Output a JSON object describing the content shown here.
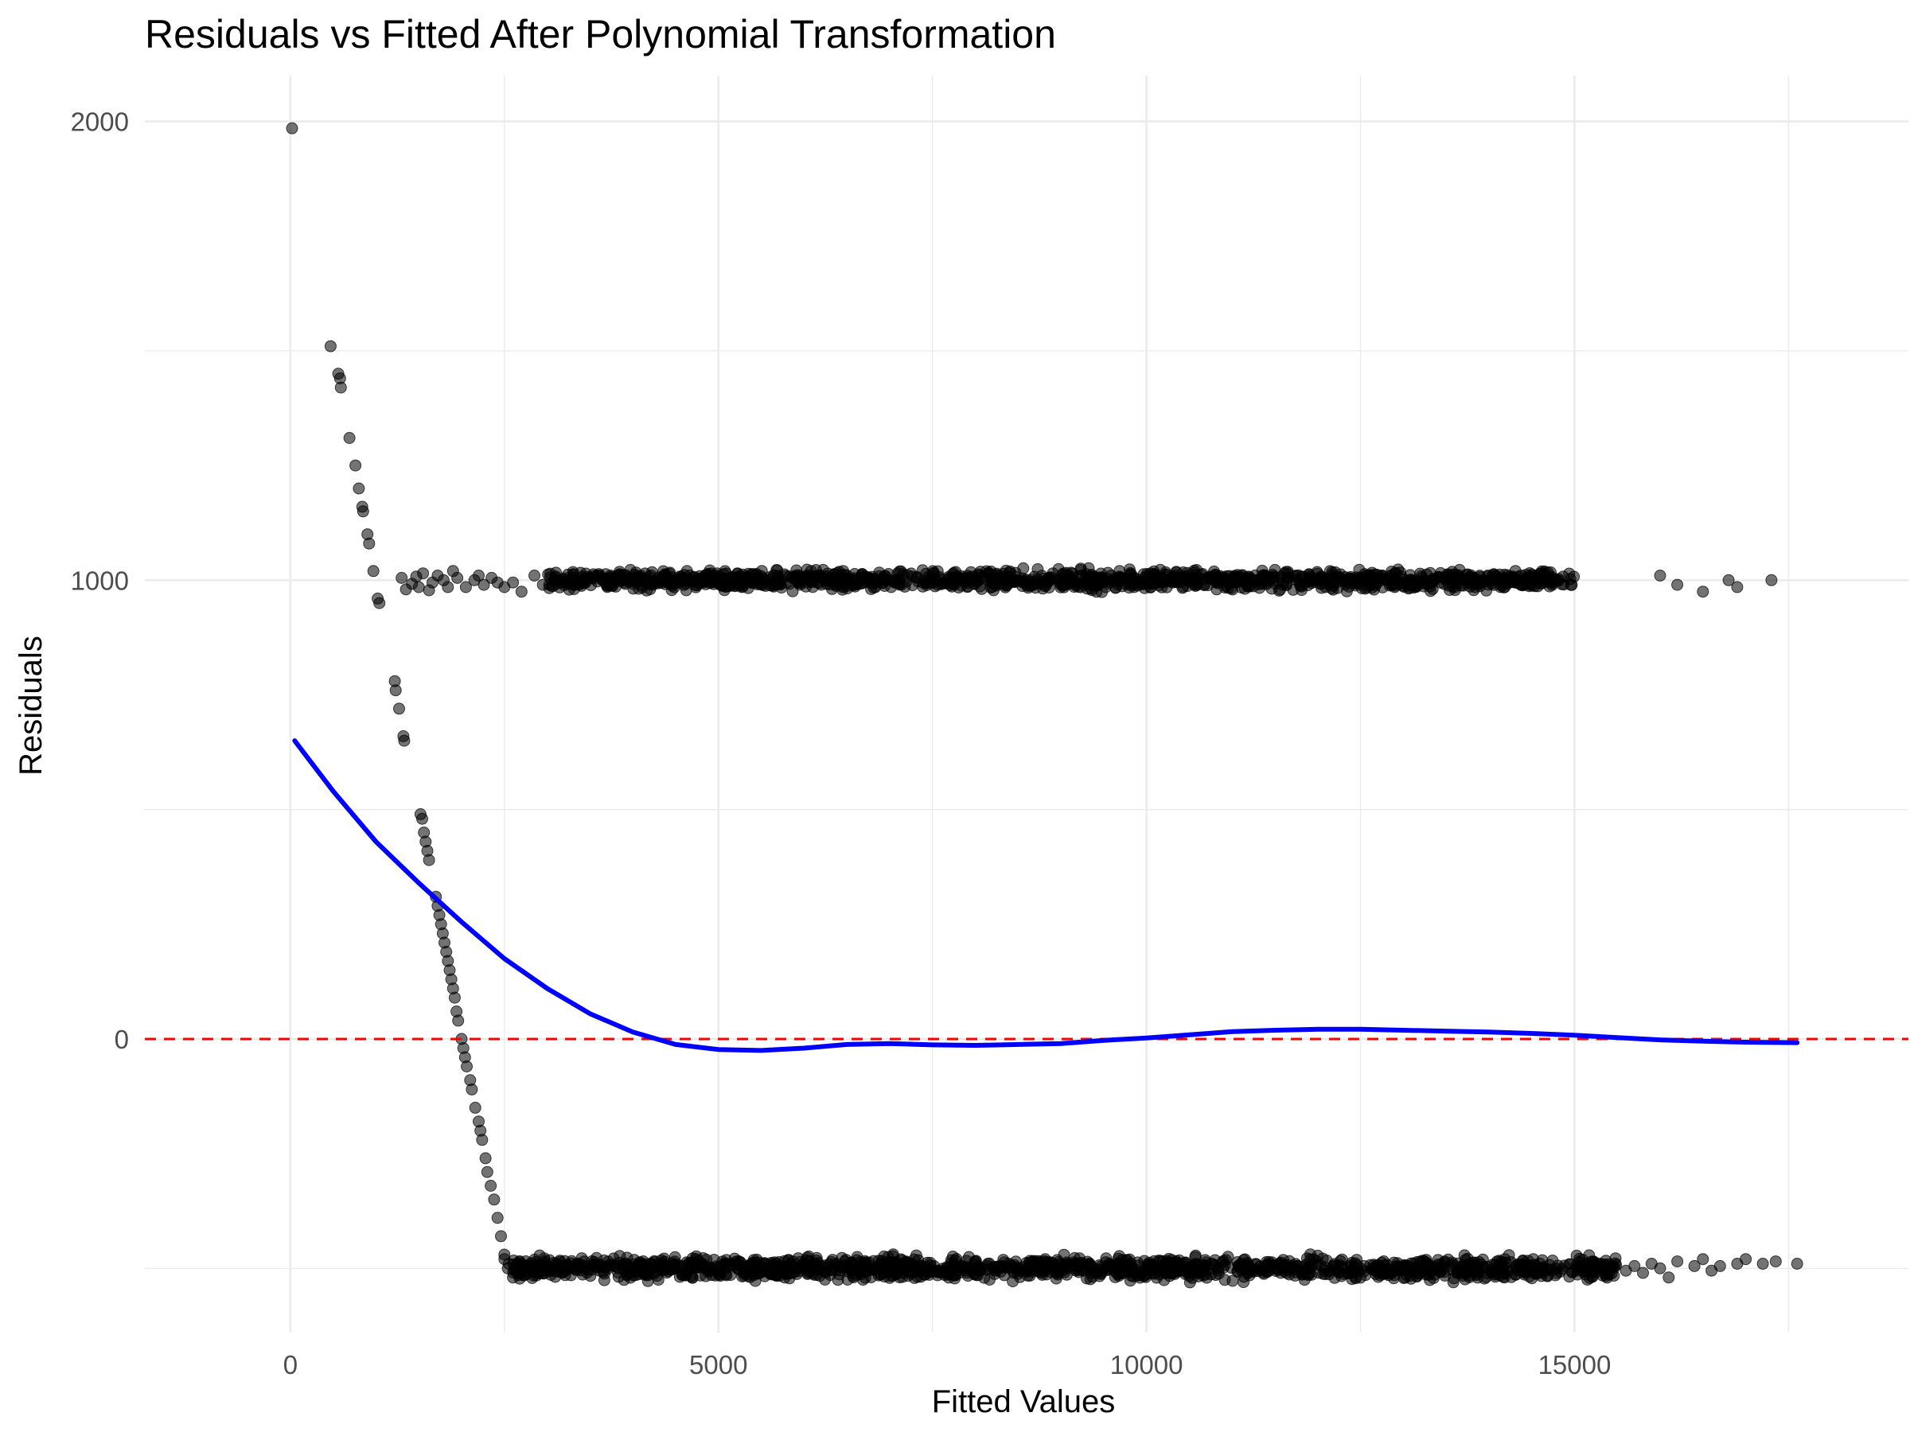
{
  "chart_data": {
    "type": "scatter",
    "title": "Residuals vs Fitted After Polynomial Transformation",
    "xlabel": "Fitted Values",
    "ylabel": "Residuals",
    "xlim": [
      -1700,
      18900
    ],
    "ylim": [
      -640,
      2100
    ],
    "x_ticks": [
      0,
      5000,
      10000,
      15000
    ],
    "x_tick_labels": [
      "0",
      "5000",
      "10000",
      "15000"
    ],
    "y_ticks": [
      0,
      1000,
      2000
    ],
    "y_tick_labels": [
      "0",
      "1000",
      "2000"
    ],
    "grid": true,
    "legend": "none",
    "colors": {
      "points": "#000000",
      "smooth_line": "#0000ff",
      "reference_line": "#ff0000",
      "grid": "#ebebeb"
    },
    "series": [
      {
        "kind": "points",
        "point_groups": [
          {
            "pattern": "steep_descending_band",
            "points": [
              [
                20,
                1985
              ],
              [
                470,
                1510
              ],
              [
                560,
                1450
              ],
              [
                580,
                1440
              ],
              [
                590,
                1420
              ],
              [
                690,
                1310
              ],
              [
                760,
                1250
              ],
              [
                800,
                1200
              ],
              [
                840,
                1160
              ],
              [
                850,
                1150
              ],
              [
                900,
                1100
              ],
              [
                920,
                1080
              ],
              [
                970,
                1020
              ],
              [
                1020,
                960
              ],
              [
                1040,
                950
              ],
              [
                1220,
                780
              ],
              [
                1230,
                760
              ],
              [
                1270,
                720
              ],
              [
                1320,
                660
              ],
              [
                1330,
                650
              ],
              [
                1520,
                490
              ],
              [
                1540,
                480
              ],
              [
                1560,
                450
              ],
              [
                1580,
                430
              ],
              [
                1600,
                410
              ],
              [
                1620,
                390
              ],
              [
                1700,
                310
              ],
              [
                1720,
                290
              ],
              [
                1740,
                270
              ],
              [
                1760,
                250
              ],
              [
                1780,
                230
              ],
              [
                1800,
                210
              ],
              [
                1820,
                190
              ],
              [
                1840,
                170
              ],
              [
                1860,
                150
              ],
              [
                1880,
                130
              ],
              [
                1900,
                110
              ],
              [
                1920,
                90
              ],
              [
                1940,
                60
              ],
              [
                1960,
                40
              ],
              [
                2000,
                0
              ],
              [
                2020,
                -20
              ],
              [
                2040,
                -40
              ],
              [
                2060,
                -60
              ],
              [
                2100,
                -90
              ],
              [
                2120,
                -110
              ],
              [
                2160,
                -150
              ],
              [
                2200,
                -180
              ],
              [
                2220,
                -200
              ],
              [
                2240,
                -220
              ],
              [
                2280,
                -260
              ],
              [
                2300,
                -290
              ],
              [
                2340,
                -320
              ],
              [
                2380,
                -350
              ],
              [
                2420,
                -390
              ],
              [
                2460,
                -430
              ],
              [
                2500,
                -480
              ],
              [
                2540,
                -500
              ]
            ]
          },
          {
            "pattern": "upper_horizontal_band",
            "center": 1000,
            "jitter": 30,
            "x_range": [
              1300,
              17400
            ],
            "dense_x_range": [
              3000,
              15000
            ],
            "points": [
              [
                1300,
                1005
              ],
              [
                1350,
                980
              ],
              [
                1420,
                992
              ],
              [
                1470,
                1008
              ],
              [
                1500,
                985
              ],
              [
                1550,
                1015
              ],
              [
                1620,
                978
              ],
              [
                1660,
                995
              ],
              [
                1720,
                1010
              ],
              [
                1790,
                1000
              ],
              [
                1840,
                985
              ],
              [
                1900,
                1020
              ],
              [
                1950,
                1005
              ],
              [
                2050,
                985
              ],
              [
                2150,
                1000
              ],
              [
                2200,
                1010
              ],
              [
                2260,
                990
              ],
              [
                2350,
                1005
              ],
              [
                2420,
                995
              ],
              [
                2500,
                985
              ],
              [
                2600,
                995
              ],
              [
                2700,
                975
              ],
              [
                2850,
                1010
              ],
              [
                2950,
                990
              ],
              [
                16000,
                1010
              ],
              [
                16200,
                990
              ],
              [
                16500,
                975
              ],
              [
                16800,
                1000
              ],
              [
                16900,
                985
              ],
              [
                17300,
                1000
              ]
            ]
          },
          {
            "pattern": "lower_horizontal_band",
            "center": -500,
            "jitter": 35,
            "x_range": [
              2500,
              17600
            ],
            "dense_x_range": [
              2600,
              15500
            ],
            "points": [
              [
                2500,
                -470
              ],
              [
                2550,
                -490
              ],
              [
                2600,
                -520
              ],
              [
                15600,
                -505
              ],
              [
                15700,
                -495
              ],
              [
                15800,
                -510
              ],
              [
                15900,
                -490
              ],
              [
                16000,
                -500
              ],
              [
                16100,
                -520
              ],
              [
                16200,
                -485
              ],
              [
                16400,
                -495
              ],
              [
                16500,
                -480
              ],
              [
                16600,
                -505
              ],
              [
                16700,
                -495
              ],
              [
                16900,
                -490
              ],
              [
                17000,
                -480
              ],
              [
                17200,
                -490
              ],
              [
                17350,
                -485
              ],
              [
                17600,
                -490
              ]
            ]
          }
        ]
      },
      {
        "kind": "smooth_line",
        "points": [
          [
            50,
            650
          ],
          [
            500,
            540
          ],
          [
            1000,
            430
          ],
          [
            1500,
            340
          ],
          [
            2000,
            255
          ],
          [
            2500,
            175
          ],
          [
            3000,
            110
          ],
          [
            3500,
            55
          ],
          [
            4000,
            15
          ],
          [
            4500,
            -12
          ],
          [
            5000,
            -23
          ],
          [
            5500,
            -25
          ],
          [
            6000,
            -20
          ],
          [
            6500,
            -12
          ],
          [
            7000,
            -10
          ],
          [
            7500,
            -13
          ],
          [
            8000,
            -14
          ],
          [
            8500,
            -12
          ],
          [
            9000,
            -10
          ],
          [
            9500,
            -3
          ],
          [
            10000,
            2
          ],
          [
            10500,
            9
          ],
          [
            11000,
            16
          ],
          [
            11500,
            19
          ],
          [
            12000,
            21
          ],
          [
            12500,
            21
          ],
          [
            13000,
            19
          ],
          [
            13500,
            17
          ],
          [
            14000,
            15
          ],
          [
            14500,
            12
          ],
          [
            15000,
            8
          ],
          [
            15500,
            3
          ],
          [
            16000,
            -2
          ],
          [
            16500,
            -5
          ],
          [
            17000,
            -7
          ],
          [
            17600,
            -8
          ]
        ]
      },
      {
        "kind": "reference_line",
        "y": 0,
        "style": "dashed"
      }
    ]
  }
}
